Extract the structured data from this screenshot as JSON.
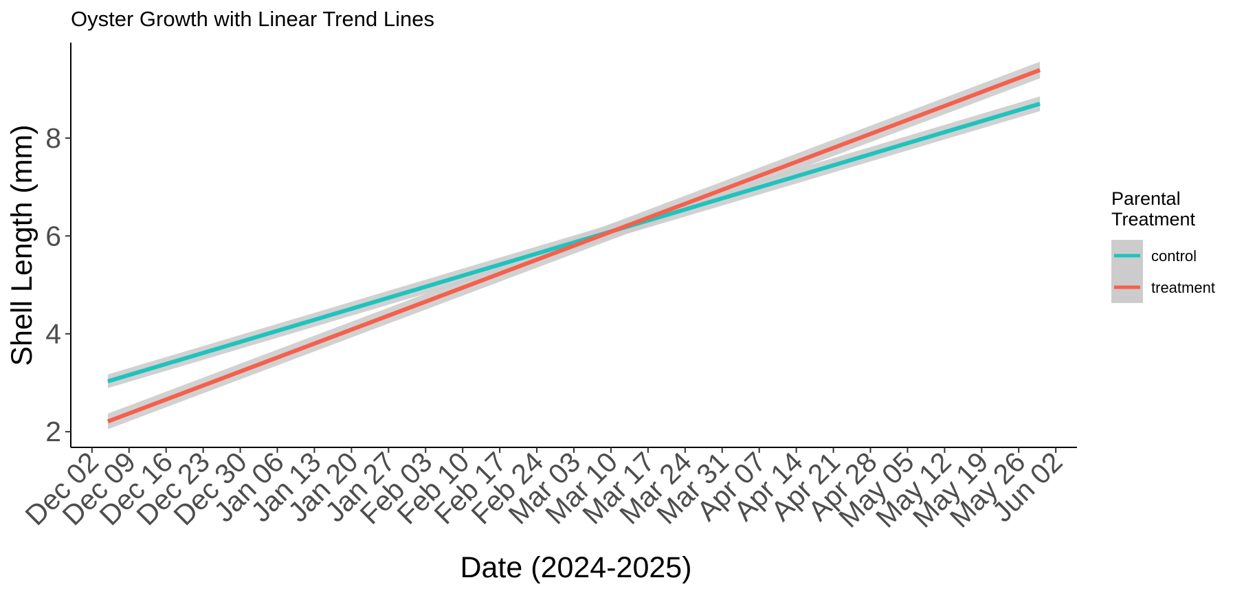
{
  "chart_data": {
    "type": "line",
    "title": "Oyster Growth with Linear Trend Lines",
    "xlabel": "Date (2024-2025)",
    "ylabel": "Shell Length (mm)",
    "x_ticks": [
      "2024-12-02",
      "2024-12-09",
      "2024-12-16",
      "2024-12-23",
      "2024-12-30",
      "2025-01-06",
      "2025-01-13",
      "2025-01-20",
      "2025-01-27",
      "2025-02-03",
      "2025-02-10",
      "2025-02-17",
      "2025-02-24",
      "2025-03-03",
      "2025-03-10",
      "2025-03-17",
      "2025-03-24",
      "2025-03-31",
      "2025-04-07",
      "2025-04-14",
      "2025-04-21",
      "2025-04-28",
      "2025-05-05",
      "2025-05-12",
      "2025-05-19",
      "2025-05-26",
      "2025-06-02"
    ],
    "x_tick_labels": [
      "Dec 02",
      "Dec 09",
      "Dec 16",
      "Dec 23",
      "Dec 30",
      "Jan 06",
      "Jan 13",
      "Jan 20",
      "Jan 27",
      "Feb 03",
      "Feb 10",
      "Feb 17",
      "Feb 24",
      "Mar 03",
      "Mar 10",
      "Mar 17",
      "Mar 24",
      "Mar 31",
      "Apr 07",
      "Apr 14",
      "Apr 21",
      "Apr 28",
      "May 05",
      "May 12",
      "May 19",
      "May 26",
      "Jun 02"
    ],
    "xlim": [
      "2024-11-28",
      "2025-06-06"
    ],
    "ylim": [
      1.68,
      9.95
    ],
    "y_ticks": [
      2,
      4,
      6,
      8
    ],
    "grid": false,
    "legend": {
      "title": "Parental\nTreatment",
      "position": "right"
    },
    "series": [
      {
        "name": "control",
        "color": "#1fc3be",
        "x": [
          "2024-12-05",
          "2025-05-30"
        ],
        "y": [
          3.03,
          8.7
        ],
        "ci_halfwidth": [
          0.14,
          0.15
        ]
      },
      {
        "name": "treatment",
        "color": "#f5604d",
        "x": [
          "2024-12-05",
          "2025-05-30"
        ],
        "y": [
          2.21,
          9.39
        ],
        "ci_halfwidth": [
          0.16,
          0.17
        ]
      }
    ],
    "ribbon_color": "#cccccc"
  }
}
